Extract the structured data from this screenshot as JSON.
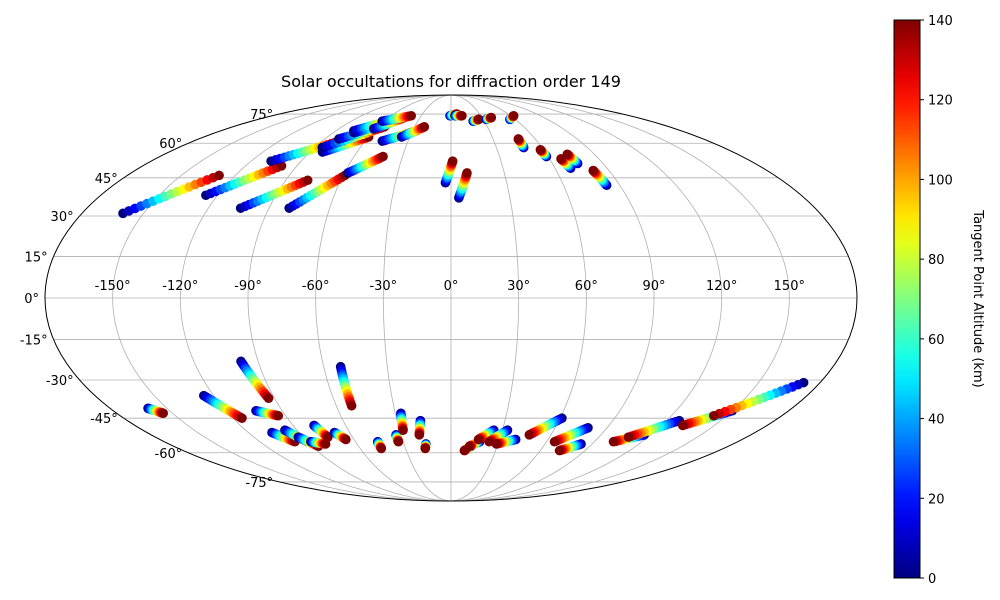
{
  "chart_data": {
    "type": "scatter",
    "projection": "mollweide",
    "title": "Solar occultations for diffraction order 149",
    "x_ticks": [
      "-150°",
      "-120°",
      "-90°",
      "-60°",
      "-30°",
      "0°",
      "30°",
      "60°",
      "90°",
      "120°",
      "150°"
    ],
    "x_tick_values": [
      -150,
      -120,
      -90,
      -60,
      -30,
      0,
      30,
      60,
      90,
      120,
      150
    ],
    "y_ticks": [
      "75°",
      "60°",
      "45°",
      "30°",
      "15°",
      "0°",
      "-15°",
      "-30°",
      "-45°",
      "-60°",
      "-75°"
    ],
    "y_tick_values": [
      75,
      60,
      45,
      30,
      15,
      0,
      -15,
      -30,
      -45,
      -60,
      -75
    ],
    "grid": true,
    "colorbar": {
      "label": "Tangent Point Altitude (km)",
      "range": [
        0,
        140
      ],
      "ticks": [
        "0",
        "20",
        "40",
        "60",
        "80",
        "100",
        "120",
        "140"
      ],
      "tick_values": [
        0,
        20,
        40,
        60,
        80,
        100,
        120,
        140
      ],
      "colormap": "jet"
    },
    "series_note": "Each track: [lon0, lat0, lon1, lat1] from 0 km to 140 km tangent altitude",
    "tracks": [
      [
        -160,
        31,
        -129,
        46
      ],
      [
        -126,
        38,
        -99,
        50
      ],
      [
        -104,
        33,
        -78,
        44
      ],
      [
        -80,
        33,
        -59,
        46
      ],
      [
        -108,
        52,
        -78,
        61
      ],
      [
        -82,
        56,
        -60,
        63
      ],
      [
        -85,
        58,
        -55,
        68
      ],
      [
        -80,
        62,
        -55,
        69
      ],
      [
        -74,
        65,
        -52,
        71
      ],
      [
        -76,
        66,
        -54,
        72
      ],
      [
        -62,
        67,
        -45,
        73
      ],
      [
        -62,
        71,
        -40,
        74
      ],
      [
        -48,
        61,
        -27,
        66
      ],
      [
        -58,
        47,
        -42,
        54
      ],
      [
        -36,
        63,
        -22,
        68
      ],
      [
        -3,
        43,
        1,
        52
      ],
      [
        4,
        37,
        9,
        47
      ],
      [
        -1,
        74,
        6,
        75
      ],
      [
        4,
        74,
        11,
        74
      ],
      [
        20,
        71,
        26,
        72
      ],
      [
        33,
        72,
        39,
        73
      ],
      [
        55,
        72,
        63,
        74
      ],
      [
        48,
        58,
        48,
        62
      ],
      [
        59,
        54,
        58,
        57
      ],
      [
        69,
        49,
        67,
        53
      ],
      [
        75,
        51,
        73,
        55
      ],
      [
        83,
        42,
        81,
        48
      ],
      [
        -160,
        -41,
        -155,
        -43
      ],
      [
        -125,
        -36,
        -115,
        -45
      ],
      [
        -98,
        -23,
        -93,
        -37
      ],
      [
        -104,
        -42,
        -94,
        -44
      ],
      [
        -106,
        -51,
        -98,
        -55
      ],
      [
        -97,
        -50,
        -90,
        -55
      ],
      [
        -93,
        -53,
        -86,
        -57
      ],
      [
        -88,
        -55,
        -80,
        -56
      ],
      [
        -78,
        -48,
        -75,
        -53
      ],
      [
        -69,
        -51,
        -65,
        -54
      ],
      [
        -52,
        -25,
        -52,
        -40
      ],
      [
        -46,
        -55,
        -46,
        -58
      ],
      [
        -33,
        -52,
        -33,
        -55
      ],
      [
        -27,
        -43,
        -28,
        -50
      ],
      [
        -17,
        -46,
        -19,
        -52
      ],
      [
        -16,
        -56,
        -17,
        -58
      ],
      [
        13,
        -57,
        9,
        -59
      ],
      [
        18,
        -55,
        12,
        -57
      ],
      [
        25,
        -50,
        17,
        -54
      ],
      [
        33,
        -50,
        24,
        -55
      ],
      [
        40,
        -54,
        29,
        -56
      ],
      [
        61,
        -45,
        47,
        -52
      ],
      [
        79,
        -49,
        65,
        -55
      ],
      [
        83,
        -56,
        73,
        -59
      ],
      [
        116,
        -52,
        102,
        -55
      ],
      [
        127,
        -46,
        108,
        -53
      ],
      [
        150,
        -42,
        132,
        -48
      ],
      [
        172,
        -31,
        143,
        -44
      ]
    ]
  }
}
